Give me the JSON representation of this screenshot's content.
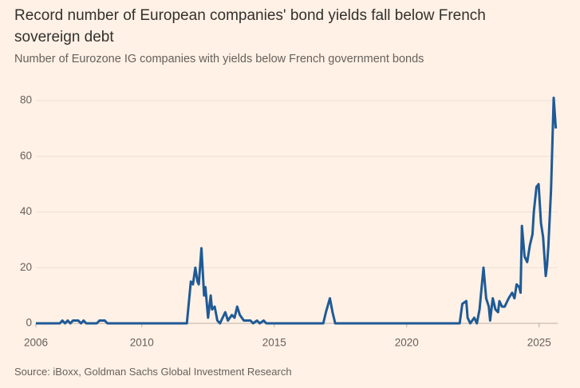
{
  "chart_data": {
    "type": "line",
    "title": "Record number of European companies' bond yields fall below French sovereign debt",
    "subtitle": "Number of Eurozone IG companies with yields below French government bonds",
    "source": "Source: iBoxx, Goldman Sachs Global Investment Research",
    "color": "#1f5a96",
    "x": [
      2006,
      2006.9,
      2007.0,
      2007.1,
      2007.2,
      2007.3,
      2007.4,
      2007.6,
      2007.7,
      2007.8,
      2007.9,
      2008.3,
      2008.4,
      2008.6,
      2008.7,
      2011.7,
      2011.85,
      2011.93,
      2012.02,
      2012.1,
      2012.15,
      2012.25,
      2012.35,
      2012.4,
      2012.5,
      2012.6,
      2012.65,
      2012.75,
      2012.85,
      2012.95,
      2013.1,
      2013.15,
      2013.25,
      2013.4,
      2013.5,
      2013.6,
      2013.7,
      2013.85,
      2014.1,
      2014.2,
      2014.35,
      2014.45,
      2014.6,
      2014.7,
      2016.85,
      2016.95,
      2017.1,
      2017.2,
      2017.3,
      2022.0,
      2022.1,
      2022.25,
      2022.3,
      2022.4,
      2022.55,
      2022.65,
      2022.75,
      2022.9,
      2023.0,
      2023.1,
      2023.15,
      2023.25,
      2023.35,
      2023.45,
      2023.5,
      2023.6,
      2023.7,
      2023.8,
      2023.85,
      2023.98,
      2024.07,
      2024.15,
      2024.25,
      2024.3,
      2024.35,
      2024.45,
      2024.55,
      2024.65,
      2024.75,
      2024.8,
      2024.9,
      2024.98,
      2025.07,
      2025.15,
      2025.25,
      2025.3,
      2025.35,
      2025.45,
      2025.55,
      2025.63
    ],
    "values": [
      0,
      0,
      1,
      0,
      1,
      0,
      1,
      1,
      0,
      1,
      0,
      0,
      1,
      1,
      0,
      0,
      15,
      14,
      20,
      15,
      14,
      27,
      10,
      13,
      2,
      10,
      5,
      6,
      1,
      0,
      3,
      4,
      1,
      3,
      2,
      6,
      3,
      1,
      1,
      0,
      1,
      0,
      1,
      0,
      0,
      4,
      9,
      4,
      0,
      0,
      7,
      8,
      2,
      0,
      2,
      0,
      5,
      20,
      9,
      6,
      1,
      9,
      5,
      4,
      8,
      6,
      6,
      8,
      9,
      11,
      9,
      14,
      13,
      11,
      35,
      24,
      22,
      28,
      32,
      40,
      49,
      50,
      36,
      31,
      17,
      21,
      28,
      48,
      81,
      70
    ],
    "xlim": [
      2006,
      2025.7
    ],
    "xticks": [
      2006,
      2010,
      2015,
      2020,
      2025
    ],
    "ylim": [
      0,
      80
    ],
    "yticks": [
      0,
      20,
      40,
      60,
      80
    ],
    "grid": true
  }
}
